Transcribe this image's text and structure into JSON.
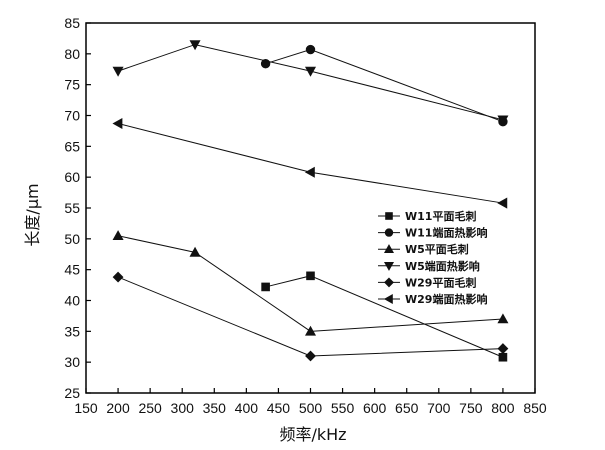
{
  "chart_data": {
    "type": "line",
    "title": "",
    "xlabel": "频率/kHz",
    "ylabel": "长度/μm",
    "xlim": [
      150,
      850
    ],
    "ylim": [
      25,
      85
    ],
    "xticks": [
      150,
      200,
      250,
      300,
      350,
      400,
      450,
      500,
      550,
      600,
      650,
      700,
      750,
      800,
      850
    ],
    "yticks": [
      25,
      30,
      35,
      40,
      45,
      50,
      55,
      60,
      65,
      70,
      75,
      80,
      85
    ],
    "grid": false,
    "legend_position": "right",
    "series": [
      {
        "name": "W11平面毛刺",
        "marker": "square",
        "x": [
          430,
          500,
          800
        ],
        "y": [
          42.2,
          44.0,
          30.8
        ]
      },
      {
        "name": "W11端面热影响",
        "marker": "circle",
        "x": [
          430,
          500,
          800
        ],
        "y": [
          78.4,
          80.7,
          69.0
        ]
      },
      {
        "name": "W5平面毛刺",
        "marker": "triangle-up",
        "x": [
          200,
          320,
          500,
          800
        ],
        "y": [
          50.5,
          47.8,
          35.0,
          37.0
        ]
      },
      {
        "name": "W5端面热影响",
        "marker": "triangle-down",
        "x": [
          200,
          320,
          500,
          800
        ],
        "y": [
          77.2,
          81.5,
          77.2,
          69.3
        ]
      },
      {
        "name": "W29平面毛刺",
        "marker": "diamond",
        "x": [
          200,
          500,
          800
        ],
        "y": [
          43.8,
          31.0,
          32.2
        ]
      },
      {
        "name": "W29端面热影响",
        "marker": "triangle-left",
        "x": [
          200,
          500,
          800
        ],
        "y": [
          68.7,
          60.8,
          55.8
        ]
      }
    ]
  }
}
